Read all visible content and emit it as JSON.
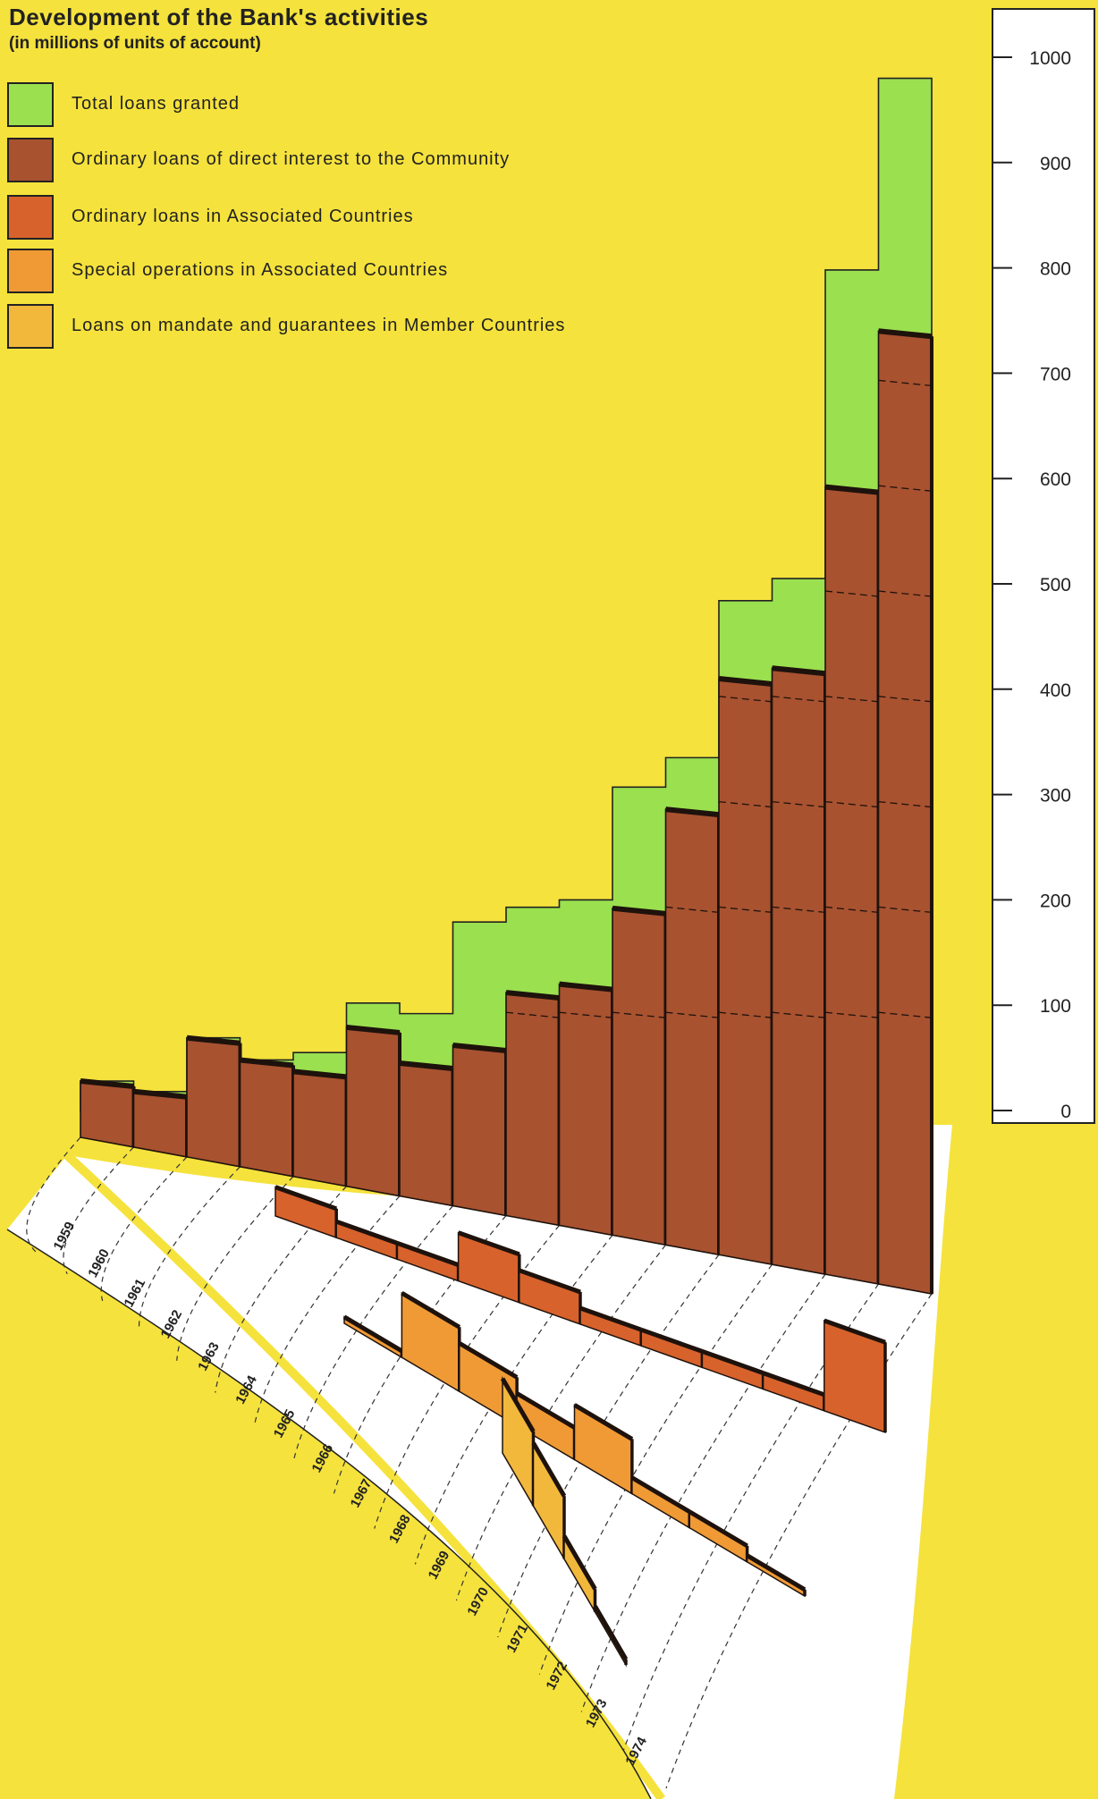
{
  "chart_data": {
    "type": "bar",
    "title": "Development of the Bank's activities",
    "subtitle": "(in millions of units of account)",
    "categories": [
      "1959",
      "1960",
      "1961",
      "1962",
      "1963",
      "1964",
      "1965",
      "1966",
      "1967",
      "1968",
      "1969",
      "1970",
      "1971",
      "1972",
      "1973",
      "1974"
    ],
    "x_ticks": [
      "1959",
      "1960",
      "1961",
      "1962",
      "1963",
      "1964",
      "1965",
      "1966",
      "1967",
      "1968",
      "1969",
      "1970",
      "1971",
      "1972",
      "1973",
      "1974"
    ],
    "ylim": [
      0,
      1000
    ],
    "y_ticks": [
      "0",
      "100",
      "200",
      "300",
      "400",
      "500",
      "600",
      "700",
      "800",
      "900",
      "1000"
    ],
    "legend_placement": "top-left",
    "series": [
      {
        "name": "Total loans granted",
        "color": "#9be04f",
        "values": [
          28,
          18,
          69,
          48,
          55,
          102,
          92,
          179,
          193,
          200,
          307,
          335,
          484,
          505,
          798,
          980
        ]
      },
      {
        "name": "Ordinary loans of direct interest to the Community",
        "color": "#a85230",
        "values": [
          28,
          18,
          69,
          48,
          37,
          79,
          45,
          62,
          112,
          120,
          192,
          286,
          410,
          420,
          592,
          740
        ]
      },
      {
        "name": "Ordinary loans in Associated Countries",
        "color": "#d8622c",
        "values": [
          null,
          null,
          null,
          null,
          null,
          null,
          9,
          5,
          5,
          15,
          10,
          5,
          5,
          5,
          5,
          28
        ]
      },
      {
        "name": "Special operations in Associated Countries",
        "color": "#f09a35",
        "values": [
          null,
          null,
          null,
          null,
          null,
          null,
          null,
          null,
          2,
          20,
          15,
          10,
          17,
          5,
          5,
          2
        ]
      },
      {
        "name": "Loans on mandate and guarantees in Member Countries",
        "color": "#f1b83c",
        "values": [
          null,
          null,
          null,
          null,
          null,
          null,
          null,
          null,
          null,
          null,
          null,
          null,
          13,
          11,
          4,
          1
        ]
      }
    ]
  }
}
